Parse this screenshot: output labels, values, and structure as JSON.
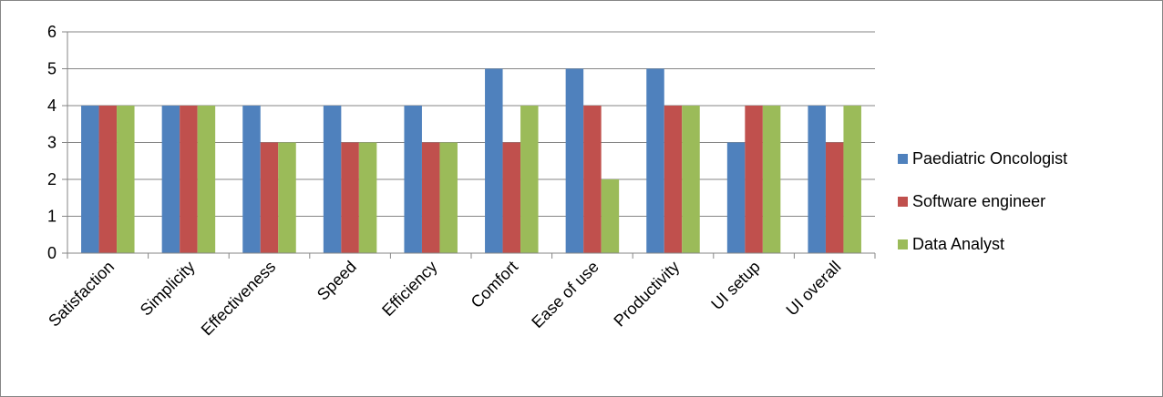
{
  "chart_data": {
    "type": "bar",
    "categories": [
      "Satisfaction",
      "Simplicity",
      "Effectiveness",
      "Speed",
      "Efficiency",
      "Comfort",
      "Ease of use",
      "Productivity",
      "UI setup",
      "UI overall"
    ],
    "series": [
      {
        "name": "Paediatric Oncologist",
        "color": "#4F81BD",
        "values": [
          4,
          4,
          4,
          4,
          4,
          5,
          5,
          5,
          3,
          4
        ]
      },
      {
        "name": "Software engineer",
        "color": "#C0504D",
        "values": [
          4,
          4,
          3,
          3,
          3,
          3,
          4,
          4,
          4,
          3
        ]
      },
      {
        "name": "Data Analyst",
        "color": "#9BBB59",
        "values": [
          4,
          4,
          3,
          3,
          3,
          4,
          2,
          4,
          4,
          4
        ]
      }
    ],
    "ylim": [
      0,
      6
    ],
    "yticks": [
      "0",
      "1",
      "2",
      "3",
      "4",
      "5",
      "6"
    ],
    "grid": true,
    "legend_position": "right",
    "title": "",
    "xlabel": "",
    "ylabel": ""
  }
}
